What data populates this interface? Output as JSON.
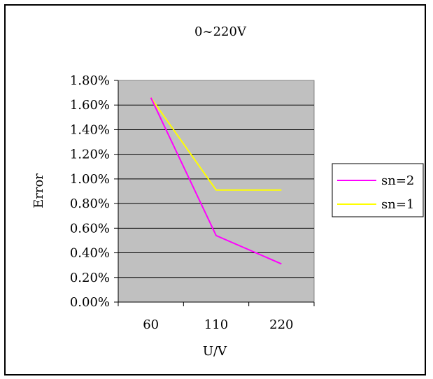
{
  "chart_data": {
    "type": "line",
    "title": "0~220V",
    "xlabel": "U/V",
    "ylabel": "Error",
    "categories": [
      "60",
      "110",
      "220"
    ],
    "yticks": [
      "0.00%",
      "0.20%",
      "0.40%",
      "0.60%",
      "0.80%",
      "1.00%",
      "1.20%",
      "1.40%",
      "1.60%",
      "1.80%"
    ],
    "ylim": [
      0,
      1.8
    ],
    "grid": true,
    "legend_position": "right",
    "plot_background": "#c0c0c0",
    "series": [
      {
        "name": "sn=2",
        "color": "#ff00ff",
        "values": [
          1.66,
          0.54,
          0.31
        ]
      },
      {
        "name": "sn=1",
        "color": "#ffff00",
        "values": [
          1.66,
          0.91,
          0.91
        ]
      }
    ]
  }
}
